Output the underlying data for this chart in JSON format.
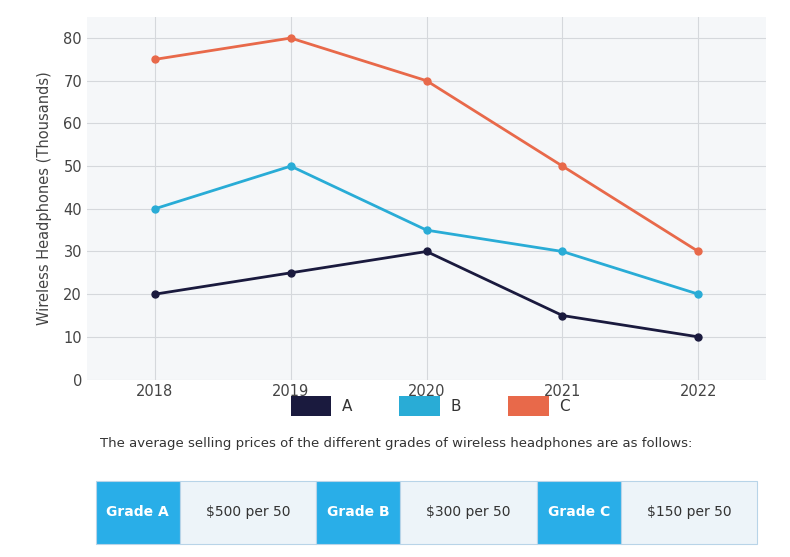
{
  "years": [
    2018,
    2019,
    2020,
    2021,
    2022
  ],
  "series_A": [
    20,
    25,
    30,
    15,
    10
  ],
  "series_B": [
    40,
    50,
    35,
    30,
    20
  ],
  "series_C": [
    75,
    80,
    70,
    50,
    30
  ],
  "color_A": "#1a1a3e",
  "color_B": "#29acd6",
  "color_C": "#e8694a",
  "ylabel": "Wireless Headphones (Thousands)",
  "ylim": [
    0,
    85
  ],
  "yticks": [
    0,
    10,
    20,
    30,
    40,
    50,
    60,
    70,
    80
  ],
  "background_color": "#ffffff",
  "plot_bg_color": "#f5f7f9",
  "grid_color": "#d5d8dc",
  "legend_labels": [
    "A",
    "B",
    "C"
  ],
  "info_text": "The average selling prices of the different grades of wireless headphones are as follows:",
  "grade_A_label": "Grade A",
  "grade_A_price": "$500 per 50",
  "grade_B_label": "Grade B",
  "grade_B_price": "$300 per 50",
  "grade_C_label": "Grade C",
  "grade_C_price": "$150 per 50",
  "grade_button_color": "#29aee8",
  "grade_button_text_color": "#ffffff",
  "grade_price_bg": "#edf4f9",
  "grade_border_color": "#b8d4e8",
  "marker_size": 5,
  "line_width": 2
}
